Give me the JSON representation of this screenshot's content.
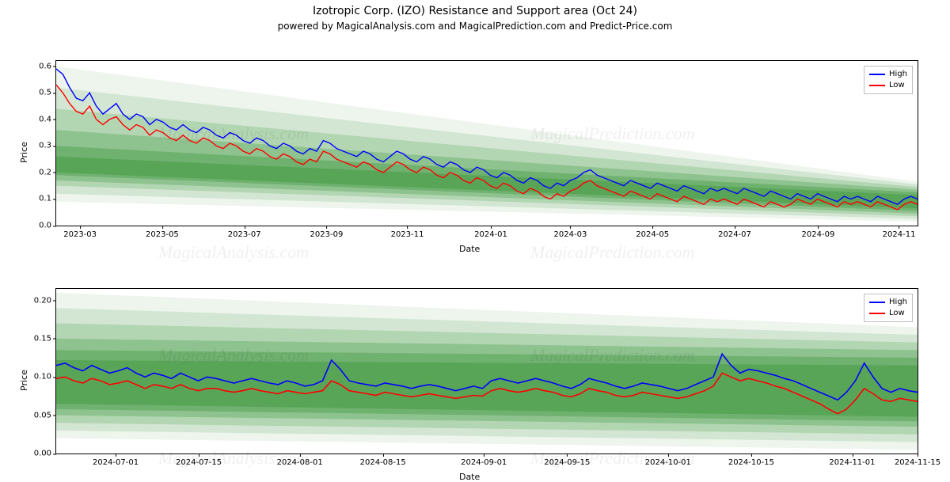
{
  "title": "Izotropic Corp. (IZO) Resistance and Support area (Oct 24)",
  "subtitle": "powered by MagicalAnalysis.com and MagicalPrediction.com and Predict-Price.com",
  "watermark_texts": [
    "MagicalAnalysis.com",
    "MagicalPrediction.com"
  ],
  "legend": {
    "high_label": "High",
    "low_label": "Low",
    "high_color": "#0000ff",
    "low_color": "#ff0000"
  },
  "chart1": {
    "type": "line+area",
    "ylabel": "Price",
    "xlabel": "Date",
    "xlim": [
      0,
      650
    ],
    "ylim": [
      0,
      0.62
    ],
    "ytick_step": 0.1,
    "ytick_decimals": 1,
    "xticks": [
      {
        "pos": 18,
        "label": "2023-03"
      },
      {
        "pos": 80,
        "label": "2023-05"
      },
      {
        "pos": 142,
        "label": "2023-07"
      },
      {
        "pos": 204,
        "label": "2023-09"
      },
      {
        "pos": 265,
        "label": "2023-11"
      },
      {
        "pos": 328,
        "label": "2024-01"
      },
      {
        "pos": 388,
        "label": "2024-03"
      },
      {
        "pos": 450,
        "label": "2024-05"
      },
      {
        "pos": 512,
        "label": "2024-07"
      },
      {
        "pos": 575,
        "label": "2024-09"
      },
      {
        "pos": 636,
        "label": "2024-11"
      }
    ],
    "band_color": "#4a9d4a",
    "bands": [
      {
        "o": 0.1,
        "l": [
          0.09,
          0.015
        ],
        "u": [
          0.6,
          0.165
        ]
      },
      {
        "o": 0.16,
        "l": [
          0.12,
          0.025
        ],
        "u": [
          0.52,
          0.155
        ]
      },
      {
        "o": 0.24,
        "l": [
          0.15,
          0.035
        ],
        "u": [
          0.44,
          0.145
        ]
      },
      {
        "o": 0.34,
        "l": [
          0.17,
          0.045
        ],
        "u": [
          0.36,
          0.135
        ]
      },
      {
        "o": 0.46,
        "l": [
          0.19,
          0.055
        ],
        "u": [
          0.3,
          0.125
        ]
      },
      {
        "o": 0.6,
        "l": [
          0.2,
          0.065
        ],
        "u": [
          0.26,
          0.115
        ]
      }
    ],
    "high": [
      0.59,
      0.57,
      0.52,
      0.48,
      0.47,
      0.5,
      0.45,
      0.42,
      0.44,
      0.46,
      0.42,
      0.4,
      0.42,
      0.41,
      0.38,
      0.4,
      0.39,
      0.37,
      0.36,
      0.38,
      0.36,
      0.35,
      0.37,
      0.36,
      0.34,
      0.33,
      0.35,
      0.34,
      0.32,
      0.31,
      0.33,
      0.32,
      0.3,
      0.29,
      0.31,
      0.3,
      0.28,
      0.27,
      0.29,
      0.28,
      0.32,
      0.31,
      0.29,
      0.28,
      0.27,
      0.26,
      0.28,
      0.27,
      0.25,
      0.24,
      0.26,
      0.28,
      0.27,
      0.25,
      0.24,
      0.26,
      0.25,
      0.23,
      0.22,
      0.24,
      0.23,
      0.21,
      0.2,
      0.22,
      0.21,
      0.19,
      0.18,
      0.2,
      0.19,
      0.17,
      0.16,
      0.18,
      0.17,
      0.15,
      0.14,
      0.16,
      0.15,
      0.17,
      0.18,
      0.2,
      0.21,
      0.19,
      0.18,
      0.17,
      0.16,
      0.15,
      0.17,
      0.16,
      0.15,
      0.14,
      0.16,
      0.15,
      0.14,
      0.13,
      0.15,
      0.14,
      0.13,
      0.12,
      0.14,
      0.13,
      0.14,
      0.13,
      0.12,
      0.14,
      0.13,
      0.12,
      0.11,
      0.13,
      0.12,
      0.11,
      0.1,
      0.12,
      0.11,
      0.1,
      0.12,
      0.11,
      0.1,
      0.09,
      0.11,
      0.1,
      0.11,
      0.1,
      0.09,
      0.11,
      0.1,
      0.09,
      0.08,
      0.1,
      0.11,
      0.1
    ],
    "low": [
      0.53,
      0.5,
      0.46,
      0.43,
      0.42,
      0.45,
      0.4,
      0.38,
      0.4,
      0.41,
      0.38,
      0.36,
      0.38,
      0.37,
      0.34,
      0.36,
      0.35,
      0.33,
      0.32,
      0.34,
      0.32,
      0.31,
      0.33,
      0.32,
      0.3,
      0.29,
      0.31,
      0.3,
      0.28,
      0.27,
      0.29,
      0.28,
      0.26,
      0.25,
      0.27,
      0.26,
      0.24,
      0.23,
      0.25,
      0.24,
      0.28,
      0.27,
      0.25,
      0.24,
      0.23,
      0.22,
      0.24,
      0.23,
      0.21,
      0.2,
      0.22,
      0.24,
      0.23,
      0.21,
      0.2,
      0.22,
      0.21,
      0.19,
      0.18,
      0.2,
      0.19,
      0.17,
      0.16,
      0.18,
      0.17,
      0.15,
      0.14,
      0.16,
      0.15,
      0.13,
      0.12,
      0.14,
      0.13,
      0.11,
      0.1,
      0.12,
      0.11,
      0.13,
      0.14,
      0.16,
      0.17,
      0.15,
      0.14,
      0.13,
      0.12,
      0.11,
      0.13,
      0.12,
      0.11,
      0.1,
      0.12,
      0.11,
      0.1,
      0.09,
      0.11,
      0.1,
      0.09,
      0.08,
      0.1,
      0.09,
      0.1,
      0.09,
      0.08,
      0.1,
      0.09,
      0.08,
      0.07,
      0.09,
      0.08,
      0.07,
      0.08,
      0.1,
      0.09,
      0.08,
      0.1,
      0.09,
      0.08,
      0.07,
      0.09,
      0.08,
      0.09,
      0.08,
      0.07,
      0.09,
      0.08,
      0.07,
      0.06,
      0.08,
      0.09,
      0.08
    ],
    "line_width": 1.4
  },
  "chart2": {
    "type": "line+area",
    "ylabel": "Price",
    "xlabel": "Date",
    "xlim": [
      0,
      145
    ],
    "ylim": [
      0,
      0.215
    ],
    "ytick_step": 0.05,
    "ytick_decimals": 2,
    "xticks": [
      {
        "pos": 10,
        "label": "2024-07-01"
      },
      {
        "pos": 24,
        "label": "2024-07-15"
      },
      {
        "pos": 41,
        "label": "2024-08-01"
      },
      {
        "pos": 55,
        "label": "2024-08-15"
      },
      {
        "pos": 72,
        "label": "2024-09-01"
      },
      {
        "pos": 86,
        "label": "2024-09-15"
      },
      {
        "pos": 103,
        "label": "2024-10-01"
      },
      {
        "pos": 117,
        "label": "2024-10-15"
      },
      {
        "pos": 134,
        "label": "2024-11-01"
      },
      {
        "pos": 145,
        "label": "2024-11-15"
      }
    ],
    "band_color": "#4a9d4a",
    "bands": [
      {
        "o": 0.1,
        "l": [
          0.02,
          0.005
        ],
        "u": [
          0.21,
          0.165
        ]
      },
      {
        "o": 0.16,
        "l": [
          0.03,
          0.015
        ],
        "u": [
          0.19,
          0.155
        ]
      },
      {
        "o": 0.24,
        "l": [
          0.04,
          0.025
        ],
        "u": [
          0.17,
          0.145
        ]
      },
      {
        "o": 0.34,
        "l": [
          0.05,
          0.035
        ],
        "u": [
          0.15,
          0.135
        ]
      },
      {
        "o": 0.46,
        "l": [
          0.058,
          0.042
        ],
        "u": [
          0.135,
          0.125
        ]
      },
      {
        "o": 0.6,
        "l": [
          0.065,
          0.048
        ],
        "u": [
          0.122,
          0.115
        ]
      }
    ],
    "high": [
      0.115,
      0.118,
      0.112,
      0.108,
      0.115,
      0.11,
      0.105,
      0.108,
      0.112,
      0.105,
      0.1,
      0.105,
      0.102,
      0.098,
      0.105,
      0.1,
      0.095,
      0.1,
      0.098,
      0.095,
      0.092,
      0.095,
      0.098,
      0.095,
      0.092,
      0.09,
      0.095,
      0.092,
      0.088,
      0.09,
      0.095,
      0.122,
      0.11,
      0.095,
      0.092,
      0.09,
      0.088,
      0.092,
      0.09,
      0.088,
      0.085,
      0.088,
      0.09,
      0.088,
      0.085,
      0.082,
      0.085,
      0.088,
      0.085,
      0.095,
      0.098,
      0.095,
      0.092,
      0.095,
      0.098,
      0.095,
      0.092,
      0.088,
      0.085,
      0.09,
      0.098,
      0.095,
      0.092,
      0.088,
      0.085,
      0.088,
      0.092,
      0.09,
      0.088,
      0.085,
      0.082,
      0.085,
      0.09,
      0.095,
      0.1,
      0.13,
      0.115,
      0.105,
      0.11,
      0.108,
      0.105,
      0.102,
      0.098,
      0.095,
      0.09,
      0.085,
      0.08,
      0.075,
      0.07,
      0.08,
      0.095,
      0.118,
      0.1,
      0.085,
      0.08,
      0.085,
      0.082,
      0.08
    ],
    "low": [
      0.098,
      0.1,
      0.095,
      0.092,
      0.098,
      0.095,
      0.09,
      0.092,
      0.095,
      0.09,
      0.085,
      0.09,
      0.088,
      0.085,
      0.09,
      0.085,
      0.082,
      0.085,
      0.085,
      0.082,
      0.08,
      0.082,
      0.085,
      0.082,
      0.08,
      0.078,
      0.082,
      0.08,
      0.078,
      0.08,
      0.082,
      0.095,
      0.09,
      0.082,
      0.08,
      0.078,
      0.076,
      0.08,
      0.078,
      0.076,
      0.074,
      0.076,
      0.078,
      0.076,
      0.074,
      0.072,
      0.074,
      0.076,
      0.075,
      0.082,
      0.085,
      0.082,
      0.08,
      0.082,
      0.085,
      0.082,
      0.08,
      0.076,
      0.074,
      0.078,
      0.085,
      0.082,
      0.08,
      0.076,
      0.074,
      0.076,
      0.08,
      0.078,
      0.076,
      0.074,
      0.072,
      0.074,
      0.078,
      0.082,
      0.088,
      0.105,
      0.1,
      0.095,
      0.098,
      0.095,
      0.092,
      0.088,
      0.085,
      0.08,
      0.075,
      0.07,
      0.065,
      0.058,
      0.052,
      0.058,
      0.07,
      0.085,
      0.078,
      0.07,
      0.068,
      0.072,
      0.07,
      0.068
    ],
    "line_width": 1.6
  }
}
